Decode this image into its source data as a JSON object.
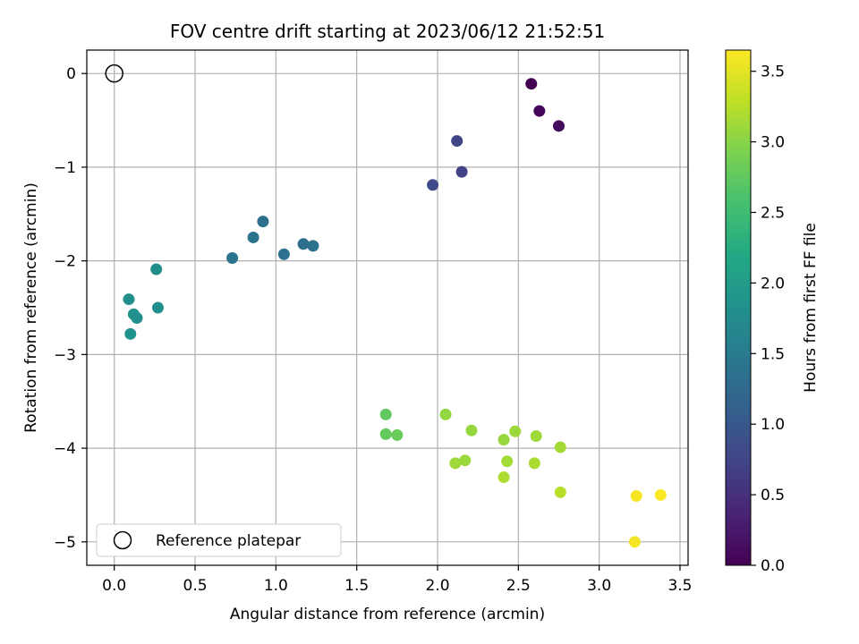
{
  "chart_data": {
    "type": "scatter",
    "title": "FOV centre drift starting at 2023/06/12 21:52:51",
    "xlabel": "Angular distance from reference (arcmin)",
    "ylabel": "Rotation from reference (arcmin)",
    "xlim": [
      -0.17,
      3.55
    ],
    "ylim": [
      -5.25,
      0.25
    ],
    "xticks": [
      0.0,
      0.5,
      1.0,
      1.5,
      2.0,
      2.5,
      3.0,
      3.5
    ],
    "xtick_labels": [
      "0.0",
      "0.5",
      "1.0",
      "1.5",
      "2.0",
      "2.5",
      "3.0",
      "3.5"
    ],
    "yticks": [
      0,
      -1,
      -2,
      -3,
      -4,
      -5
    ],
    "ytick_labels": [
      "0",
      "−1",
      "−2",
      "−3",
      "−4",
      "−5"
    ],
    "grid": true,
    "legend": {
      "placement": "lower-left",
      "entries": [
        "Reference platepar"
      ]
    },
    "reference_point": {
      "x": 0.0,
      "y": 0.0
    },
    "colorbar": {
      "label": "Hours from first FF file",
      "colormap": "viridis",
      "range": [
        0.0,
        3.65
      ],
      "ticks": [
        0.0,
        0.5,
        1.0,
        1.5,
        2.0,
        2.5,
        3.0,
        3.5
      ],
      "tick_labels": [
        "0.0",
        "0.5",
        "1.0",
        "1.5",
        "2.0",
        "2.5",
        "3.0",
        "3.5"
      ]
    },
    "points": [
      {
        "x": 2.58,
        "y": -0.11,
        "hours": 0.0
      },
      {
        "x": 2.63,
        "y": -0.4,
        "hours": 0.05
      },
      {
        "x": 2.75,
        "y": -0.56,
        "hours": 0.1
      },
      {
        "x": 2.12,
        "y": -0.72,
        "hours": 0.75
      },
      {
        "x": 2.15,
        "y": -1.05,
        "hours": 0.72
      },
      {
        "x": 1.97,
        "y": -1.19,
        "hours": 0.78
      },
      {
        "x": 0.92,
        "y": -1.58,
        "hours": 1.35
      },
      {
        "x": 0.86,
        "y": -1.75,
        "hours": 1.38
      },
      {
        "x": 0.73,
        "y": -1.97,
        "hours": 1.4
      },
      {
        "x": 1.05,
        "y": -1.93,
        "hours": 1.36
      },
      {
        "x": 1.17,
        "y": -1.82,
        "hours": 1.33
      },
      {
        "x": 1.23,
        "y": -1.84,
        "hours": 1.35
      },
      {
        "x": 0.26,
        "y": -2.09,
        "hours": 1.78
      },
      {
        "x": 0.09,
        "y": -2.41,
        "hours": 1.8
      },
      {
        "x": 0.12,
        "y": -2.57,
        "hours": 1.82
      },
      {
        "x": 0.14,
        "y": -2.61,
        "hours": 1.8
      },
      {
        "x": 0.27,
        "y": -2.5,
        "hours": 1.78
      },
      {
        "x": 0.1,
        "y": -2.78,
        "hours": 1.84
      },
      {
        "x": 1.68,
        "y": -3.64,
        "hours": 2.75
      },
      {
        "x": 1.68,
        "y": -3.85,
        "hours": 2.78
      },
      {
        "x": 1.75,
        "y": -3.86,
        "hours": 2.8
      },
      {
        "x": 2.05,
        "y": -3.64,
        "hours": 3.05
      },
      {
        "x": 2.21,
        "y": -3.81,
        "hours": 3.08
      },
      {
        "x": 2.48,
        "y": -3.82,
        "hours": 3.1
      },
      {
        "x": 2.61,
        "y": -3.87,
        "hours": 3.12
      },
      {
        "x": 2.41,
        "y": -3.91,
        "hours": 3.08
      },
      {
        "x": 2.76,
        "y": -3.99,
        "hours": 3.15
      },
      {
        "x": 2.11,
        "y": -4.16,
        "hours": 3.12
      },
      {
        "x": 2.17,
        "y": -4.13,
        "hours": 3.1
      },
      {
        "x": 2.43,
        "y": -4.14,
        "hours": 3.15
      },
      {
        "x": 2.6,
        "y": -4.16,
        "hours": 3.18
      },
      {
        "x": 2.41,
        "y": -4.31,
        "hours": 3.2
      },
      {
        "x": 2.76,
        "y": -4.47,
        "hours": 3.25
      },
      {
        "x": 3.23,
        "y": -4.51,
        "hours": 3.62
      },
      {
        "x": 3.38,
        "y": -4.5,
        "hours": 3.64
      },
      {
        "x": 3.22,
        "y": -5.0,
        "hours": 3.6
      }
    ]
  }
}
